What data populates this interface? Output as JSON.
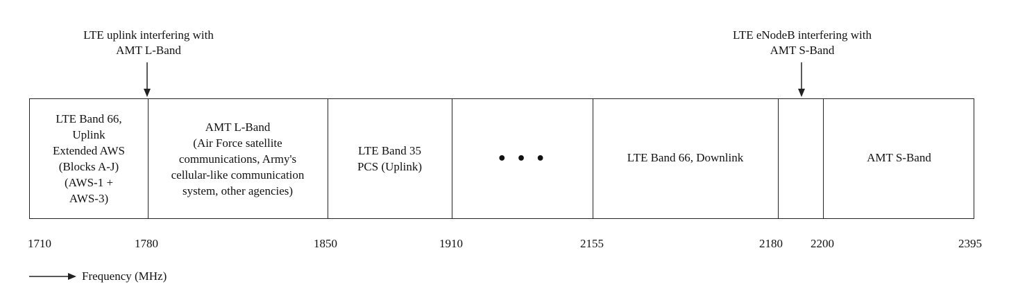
{
  "annotations": [
    {
      "id": "uplink",
      "lines": [
        "LTE uplink interfering with",
        "AMT L-Band"
      ]
    },
    {
      "id": "enodeb",
      "lines": [
        "LTE eNodeB interfering with",
        "AMT S-Band"
      ]
    }
  ],
  "bands": [
    {
      "lines": [
        "LTE Band 66,",
        "Uplink",
        "Extended AWS",
        "(Blocks A-J)",
        "(AWS-1 +",
        "AWS-3)"
      ]
    },
    {
      "lines": [
        "AMT L-Band",
        "(Air Force satellite",
        "communications, Army's",
        "cellular-like communication",
        "system, other agencies)"
      ]
    },
    {
      "lines": [
        "LTE Band 35",
        "PCS (Uplink)"
      ]
    },
    {
      "lines": [
        "• • •"
      ]
    },
    {
      "lines": [
        "LTE Band 66, Downlink"
      ]
    },
    {
      "lines": [
        ""
      ]
    },
    {
      "lines": [
        "AMT S-Band"
      ]
    }
  ],
  "ticks": [
    "1710",
    "1780",
    "1850",
    "1910",
    "2155",
    "2180",
    "2200",
    "2395"
  ],
  "legend": {
    "label": "Frequency (MHz)"
  }
}
